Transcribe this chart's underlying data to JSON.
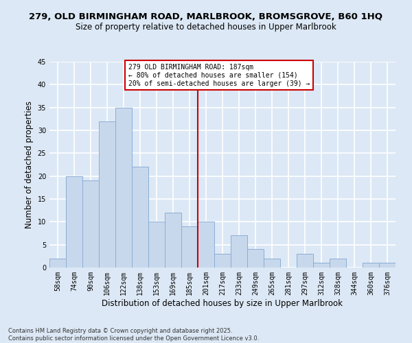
{
  "title1": "279, OLD BIRMINGHAM ROAD, MARLBROOK, BROMSGROVE, B60 1HQ",
  "title2": "Size of property relative to detached houses in Upper Marlbrook",
  "xlabel": "Distribution of detached houses by size in Upper Marlbrook",
  "ylabel": "Number of detached properties",
  "categories": [
    "58sqm",
    "74sqm",
    "90sqm",
    "106sqm",
    "122sqm",
    "138sqm",
    "153sqm",
    "169sqm",
    "185sqm",
    "201sqm",
    "217sqm",
    "233sqm",
    "249sqm",
    "265sqm",
    "281sqm",
    "297sqm",
    "312sqm",
    "328sqm",
    "344sqm",
    "360sqm",
    "376sqm"
  ],
  "values": [
    2,
    20,
    19,
    32,
    35,
    22,
    10,
    12,
    9,
    10,
    3,
    7,
    4,
    2,
    0,
    3,
    1,
    2,
    0,
    1,
    1
  ],
  "bar_color": "#c8d8ec",
  "bar_edge_color": "#8aadd4",
  "bar_width": 1.0,
  "ylim": [
    0,
    45
  ],
  "yticks": [
    0,
    5,
    10,
    15,
    20,
    25,
    30,
    35,
    40,
    45
  ],
  "property_line_x": 8.5,
  "property_line_color": "#cc0000",
  "annotation_text": "279 OLD BIRMINGHAM ROAD: 187sqm\n← 80% of detached houses are smaller (154)\n20% of semi-detached houses are larger (39) →",
  "annotation_box_color": "#ffffff",
  "annotation_box_edge": "#cc0000",
  "footer_text": "Contains HM Land Registry data © Crown copyright and database right 2025.\nContains public sector information licensed under the Open Government Licence v3.0.",
  "bg_color": "#dce8f5",
  "grid_color": "#ffffff",
  "title_fontsize": 9.5,
  "subtitle_fontsize": 8.5,
  "tick_fontsize": 7,
  "label_fontsize": 8.5,
  "footer_fontsize": 6.0
}
